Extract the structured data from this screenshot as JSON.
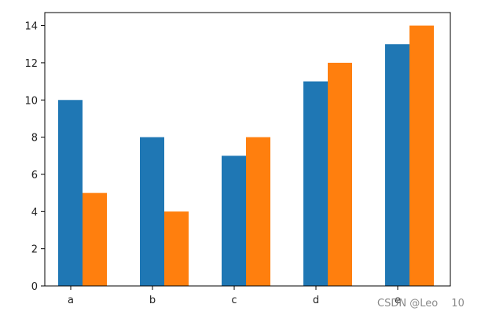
{
  "chart_data": {
    "type": "bar",
    "categories": [
      "a",
      "b",
      "c",
      "d",
      "e"
    ],
    "series": [
      {
        "values": [
          10,
          8,
          7,
          11,
          13
        ],
        "color": "#1f77b4"
      },
      {
        "values": [
          5,
          4,
          8,
          12,
          14
        ],
        "color": "#ff7f0e"
      }
    ],
    "title": "",
    "xlabel": "",
    "ylabel": "",
    "ylim": [
      0,
      14.7
    ],
    "yticks": [
      0,
      2,
      4,
      6,
      8,
      10,
      12,
      14
    ],
    "grid": false,
    "legend": "none"
  },
  "watermark": "CSDN @Leo　 10"
}
